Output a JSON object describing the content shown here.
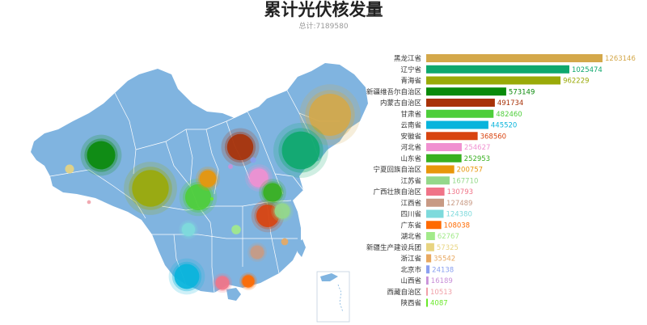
{
  "chart_data": {
    "type": "bar",
    "title": "累计光伏核发量",
    "subtitle": "总计:7189580",
    "categories": [
      "黑龙江省",
      "辽宁省",
      "青海省",
      "新疆维吾尔自治区",
      "内蒙古自治区",
      "甘肃省",
      "云南省",
      "安徽省",
      "河北省",
      "山东省",
      "宁夏回族自治区",
      "江苏省",
      "广西壮族自治区",
      "江西省",
      "四川省",
      "广东省",
      "湖北省",
      "新疆生产建设兵团",
      "浙江省",
      "北京市",
      "山西省",
      "西藏自治区",
      "陕西省"
    ],
    "values": [
      1263146,
      1025474,
      962229,
      573149,
      491734,
      482460,
      445520,
      368560,
      254627,
      252953,
      200757,
      167710,
      130793,
      127489,
      124380,
      108038,
      62767,
      57325,
      35542,
      24138,
      16189,
      10513,
      4087
    ],
    "colors": [
      "#d4a84a",
      "#0ea86d",
      "#9aaa08",
      "#0a8a0a",
      "#a83208",
      "#4ece3a",
      "#08b4dc",
      "#d84410",
      "#f090d0",
      "#38b020",
      "#e8960a",
      "#94d88a",
      "#f07488",
      "#c89a84",
      "#7edadc",
      "#ff6a00",
      "#a2ea8a",
      "#e8d480",
      "#e8a860",
      "#8aa0f0",
      "#c890d8",
      "#f0a0a8",
      "#6ae82a"
    ],
    "xlabel": "",
    "ylabel": "",
    "grid": false,
    "legend": "none"
  },
  "map": {
    "land_color": "#80b4e0",
    "border_color": "#ffffff"
  }
}
